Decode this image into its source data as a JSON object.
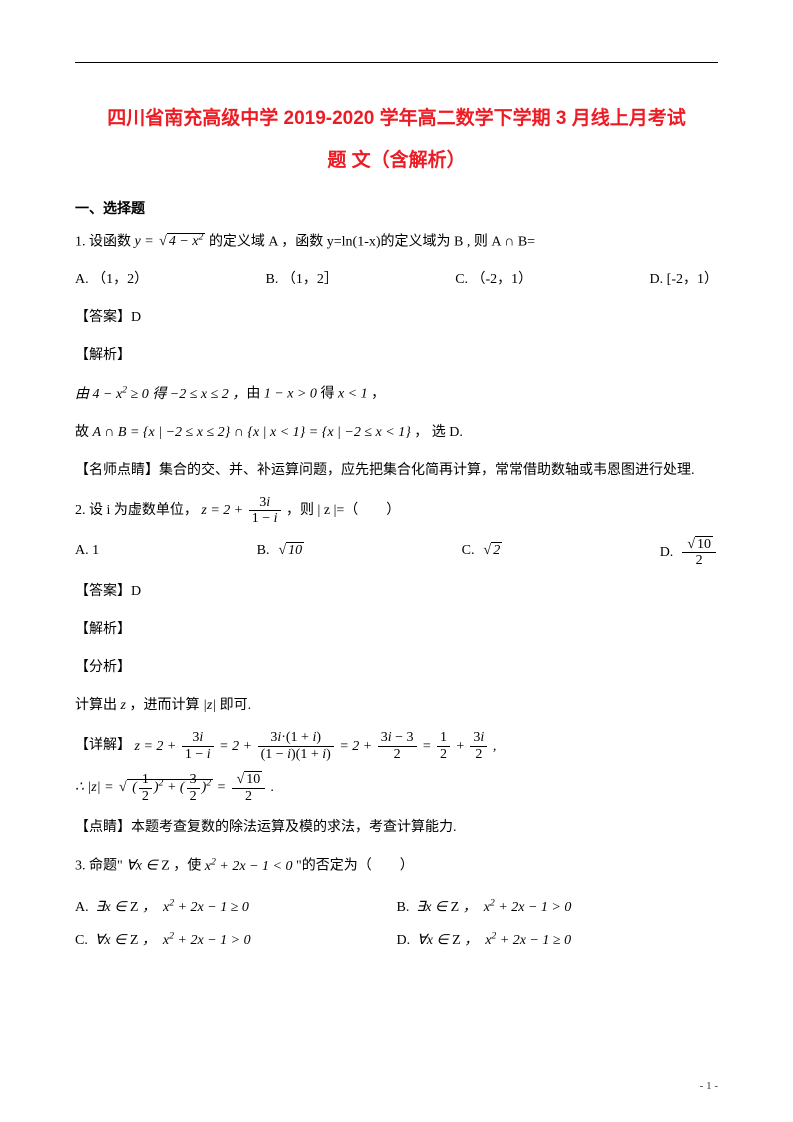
{
  "colors": {
    "title": "#ed1c24",
    "text": "#000000",
    "bg": "#ffffff"
  },
  "fonts": {
    "title_size": 19,
    "body_size": 14,
    "heading_size": 14
  },
  "title_line1": "四川省南充高级中学 2019-2020 学年高二数学下学期 3 月线上月考试",
  "title_line2": "题 文（含解析）",
  "section1": "一、选择题",
  "q1": {
    "stem_pre": "1. 设函数 ",
    "stem_formula": "y = √(4 − x²)",
    "stem_post": " 的定义域 A ，函数 y=ln(1-x)的定义域为 B , 则 A ∩ B=",
    "optA": "A.  （1，2）",
    "optB": "B.  （1，2］",
    "optC": "C.  （-2，1）",
    "optD": "D.  [-2，1）",
    "answer": "【答案】D",
    "jiexi": "【解析】",
    "step1": "由 4 − x² ≥ 0 得 −2 ≤ x ≤ 2 ，由 1 − x > 0 得 x < 1 ，",
    "step2": "故 A ∩ B = {x | −2 ≤ x ≤ 2} ∩ {x | x < 1} = {x | −2 ≤ x < 1} ， 选 D.",
    "tip": "【名师点睛】集合的交、并、补运算问题，应先把集合化简再计算，常常借助数轴或韦恩图进行处理."
  },
  "q2": {
    "stem": "2. 设 i 为虚数单位，",
    "stem_mid": "z = 2 + 3i/(1−i)",
    "stem_post": "，则 | z |=（　　）",
    "optA": "A.  1",
    "optB": "B.  √10",
    "optC": "C.  √2",
    "optD": "D.  √10 / 2",
    "answer": "【答案】D",
    "jiexi": "【解析】",
    "fenxi": "【分析】",
    "step0": "计算出 z ，进而计算 |z| 即可.",
    "detail_label": "【详解】",
    "detail_formula": "z = 2 + 3i/(1−i) = 2 + 3i·(1+i)/((1−i)(1+i)) = 2 + (3i−3)/2 = 1/2 + 3i/2 ,",
    "mod_formula": "∴ |z| = √((1/2)² + (3/2)²) = √10/2 .",
    "tip": "【点睛】本题考查复数的除法运算及模的求法，考查计算能力."
  },
  "q3": {
    "stem": "3. 命题\" ∀x ∈ Z ，使 x² + 2x − 1 < 0 \"的否定为（　　）",
    "optA": "A.  ∃x ∈ Z ，  x² + 2x − 1 ≥ 0",
    "optB": "B.  ∃x ∈ Z ，  x² + 2x − 1 > 0",
    "optC": "C.  ∀x ∈ Z ，  x² + 2x − 1 > 0",
    "optD": "D.  ∀x ∈ Z ，  x² + 2x − 1 ≥ 0"
  },
  "page_number": "- 1 -"
}
